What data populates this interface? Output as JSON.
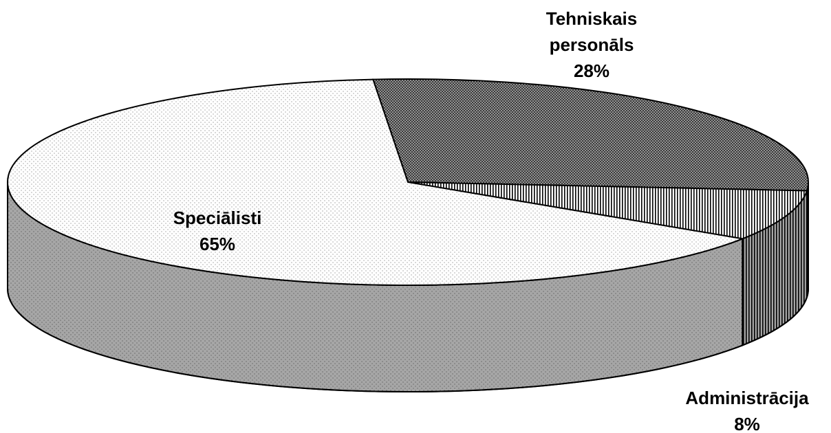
{
  "chart_data": {
    "type": "pie3d",
    "categories": [
      "Tehniskais personāls",
      "Administrācija",
      "Speciālisti"
    ],
    "values": [
      28,
      8,
      65
    ],
    "value_labels": [
      "28%",
      "8%",
      "65%"
    ],
    "colors": [
      "#3a3a3a",
      "#ffffff",
      "#ffffff"
    ]
  }
}
